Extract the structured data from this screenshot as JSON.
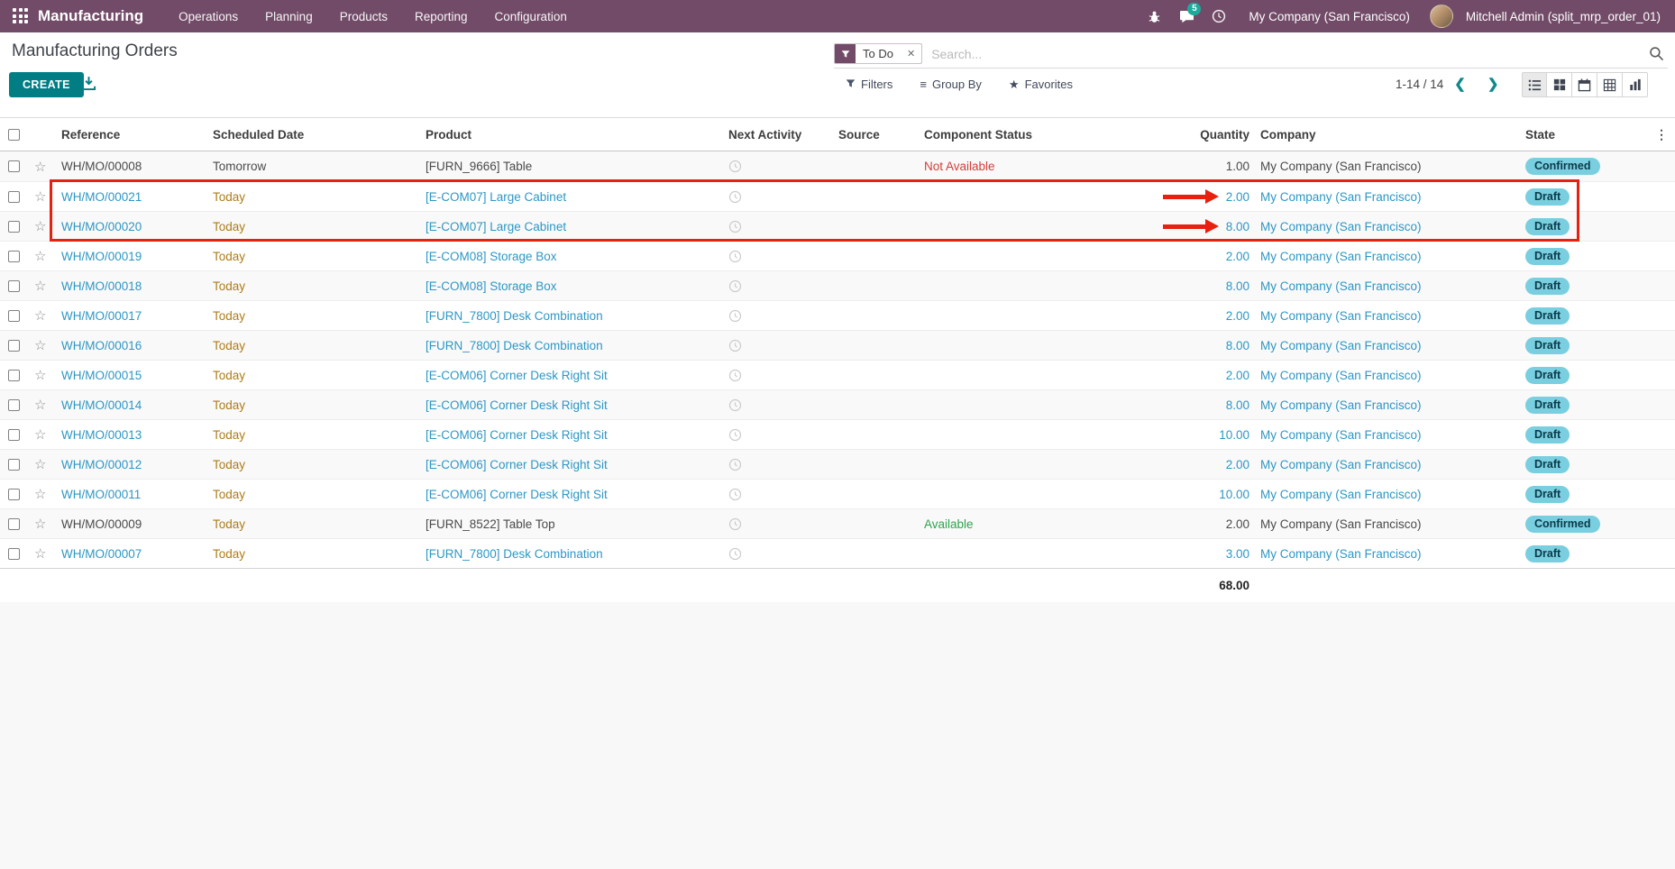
{
  "topbar": {
    "app_name": "Manufacturing",
    "menus": [
      "Operations",
      "Planning",
      "Products",
      "Reporting",
      "Configuration"
    ],
    "message_count": "5",
    "company": "My Company (San Francisco)",
    "user": "Mitchell Admin (split_mrp_order_01)"
  },
  "control_panel": {
    "title": "Manufacturing Orders",
    "create_label": "CREATE",
    "search": {
      "facet": "To Do",
      "placeholder": "Search..."
    },
    "buttons": {
      "filters": "Filters",
      "group_by": "Group By",
      "favorites": "Favorites"
    },
    "pager": {
      "range": "1-14 / 14"
    },
    "view_switcher": [
      "list-view",
      "kanban-view",
      "calendar-view",
      "pivot-view",
      "graph-view"
    ],
    "active_view": "list-view"
  },
  "table": {
    "headers": [
      "Reference",
      "Scheduled Date",
      "Product",
      "Next Activity",
      "Source",
      "Component Status",
      "Quantity",
      "Company",
      "State"
    ],
    "rows": [
      {
        "reference": "WH/MO/00008",
        "scheduled": "Tomorrow",
        "product": "[FURN_9666] Table",
        "source": "",
        "component_status": "Not Available",
        "component_class": "danger",
        "quantity": "1.00",
        "company": "My Company (San Francisco)",
        "state": "Confirmed",
        "draft": false,
        "date_warning": false,
        "arrow": false,
        "highlight": false
      },
      {
        "reference": "WH/MO/00021",
        "scheduled": "Today",
        "product": "[E-COM07] Large Cabinet",
        "source": "",
        "component_status": "",
        "component_class": "",
        "quantity": "2.00",
        "company": "My Company (San Francisco)",
        "state": "Draft",
        "draft": true,
        "date_warning": true,
        "arrow": true,
        "highlight": true
      },
      {
        "reference": "WH/MO/00020",
        "scheduled": "Today",
        "product": "[E-COM07] Large Cabinet",
        "source": "",
        "component_status": "",
        "component_class": "",
        "quantity": "8.00",
        "company": "My Company (San Francisco)",
        "state": "Draft",
        "draft": true,
        "date_warning": true,
        "arrow": true,
        "highlight": true
      },
      {
        "reference": "WH/MO/00019",
        "scheduled": "Today",
        "product": "[E-COM08] Storage Box",
        "source": "",
        "component_status": "",
        "component_class": "",
        "quantity": "2.00",
        "company": "My Company (San Francisco)",
        "state": "Draft",
        "draft": true,
        "date_warning": true,
        "arrow": false,
        "highlight": false
      },
      {
        "reference": "WH/MO/00018",
        "scheduled": "Today",
        "product": "[E-COM08] Storage Box",
        "source": "",
        "component_status": "",
        "component_class": "",
        "quantity": "8.00",
        "company": "My Company (San Francisco)",
        "state": "Draft",
        "draft": true,
        "date_warning": true,
        "arrow": false,
        "highlight": false
      },
      {
        "reference": "WH/MO/00017",
        "scheduled": "Today",
        "product": "[FURN_7800] Desk Combination",
        "source": "",
        "component_status": "",
        "component_class": "",
        "quantity": "2.00",
        "company": "My Company (San Francisco)",
        "state": "Draft",
        "draft": true,
        "date_warning": true,
        "arrow": false,
        "highlight": false
      },
      {
        "reference": "WH/MO/00016",
        "scheduled": "Today",
        "product": "[FURN_7800] Desk Combination",
        "source": "",
        "component_status": "",
        "component_class": "",
        "quantity": "8.00",
        "company": "My Company (San Francisco)",
        "state": "Draft",
        "draft": true,
        "date_warning": true,
        "arrow": false,
        "highlight": false
      },
      {
        "reference": "WH/MO/00015",
        "scheduled": "Today",
        "product": "[E-COM06] Corner Desk Right Sit",
        "source": "",
        "component_status": "",
        "component_class": "",
        "quantity": "2.00",
        "company": "My Company (San Francisco)",
        "state": "Draft",
        "draft": true,
        "date_warning": true,
        "arrow": false,
        "highlight": false
      },
      {
        "reference": "WH/MO/00014",
        "scheduled": "Today",
        "product": "[E-COM06] Corner Desk Right Sit",
        "source": "",
        "component_status": "",
        "component_class": "",
        "quantity": "8.00",
        "company": "My Company (San Francisco)",
        "state": "Draft",
        "draft": true,
        "date_warning": true,
        "arrow": false,
        "highlight": false
      },
      {
        "reference": "WH/MO/00013",
        "scheduled": "Today",
        "product": "[E-COM06] Corner Desk Right Sit",
        "source": "",
        "component_status": "",
        "component_class": "",
        "quantity": "10.00",
        "company": "My Company (San Francisco)",
        "state": "Draft",
        "draft": true,
        "date_warning": true,
        "arrow": false,
        "highlight": false
      },
      {
        "reference": "WH/MO/00012",
        "scheduled": "Today",
        "product": "[E-COM06] Corner Desk Right Sit",
        "source": "",
        "component_status": "",
        "component_class": "",
        "quantity": "2.00",
        "company": "My Company (San Francisco)",
        "state": "Draft",
        "draft": true,
        "date_warning": true,
        "arrow": false,
        "highlight": false
      },
      {
        "reference": "WH/MO/00011",
        "scheduled": "Today",
        "product": "[E-COM06] Corner Desk Right Sit",
        "source": "",
        "component_status": "",
        "component_class": "",
        "quantity": "10.00",
        "company": "My Company (San Francisco)",
        "state": "Draft",
        "draft": true,
        "date_warning": true,
        "arrow": false,
        "highlight": false
      },
      {
        "reference": "WH/MO/00009",
        "scheduled": "Today",
        "product": "[FURN_8522] Table Top",
        "source": "",
        "component_status": "Available",
        "component_class": "success",
        "quantity": "2.00",
        "company": "My Company (San Francisco)",
        "state": "Confirmed",
        "draft": false,
        "date_warning": true,
        "arrow": false,
        "highlight": false
      },
      {
        "reference": "WH/MO/00007",
        "scheduled": "Today",
        "product": "[FURN_7800] Desk Combination",
        "source": "",
        "component_status": "",
        "component_class": "",
        "quantity": "3.00",
        "company": "My Company (San Francisco)",
        "state": "Draft",
        "draft": true,
        "date_warning": true,
        "arrow": false,
        "highlight": false
      }
    ],
    "total_quantity": "68.00"
  },
  "annotations": {
    "highlighted_references": [
      "WH/MO/00021",
      "WH/MO/00020"
    ],
    "arrow_quantities": [
      "2.00",
      "8.00"
    ],
    "color": "#e8200f"
  },
  "colors": {
    "topbar": "#714B67",
    "accent": "#017e84",
    "link_blue": "#2d97c4",
    "warning_text": "#ad7c18",
    "danger_text": "#d23f3a",
    "success_text": "#2da44e",
    "state_badge_bg": "#79cfdf",
    "annotation_red": "#e8200f"
  },
  "icons": {
    "apps": "grid",
    "debug": "bug",
    "messages": "chat-bubble",
    "activities": "clock",
    "facet": "funnel",
    "export": "download",
    "next_activity": "clock",
    "favorite": "star-outline"
  }
}
